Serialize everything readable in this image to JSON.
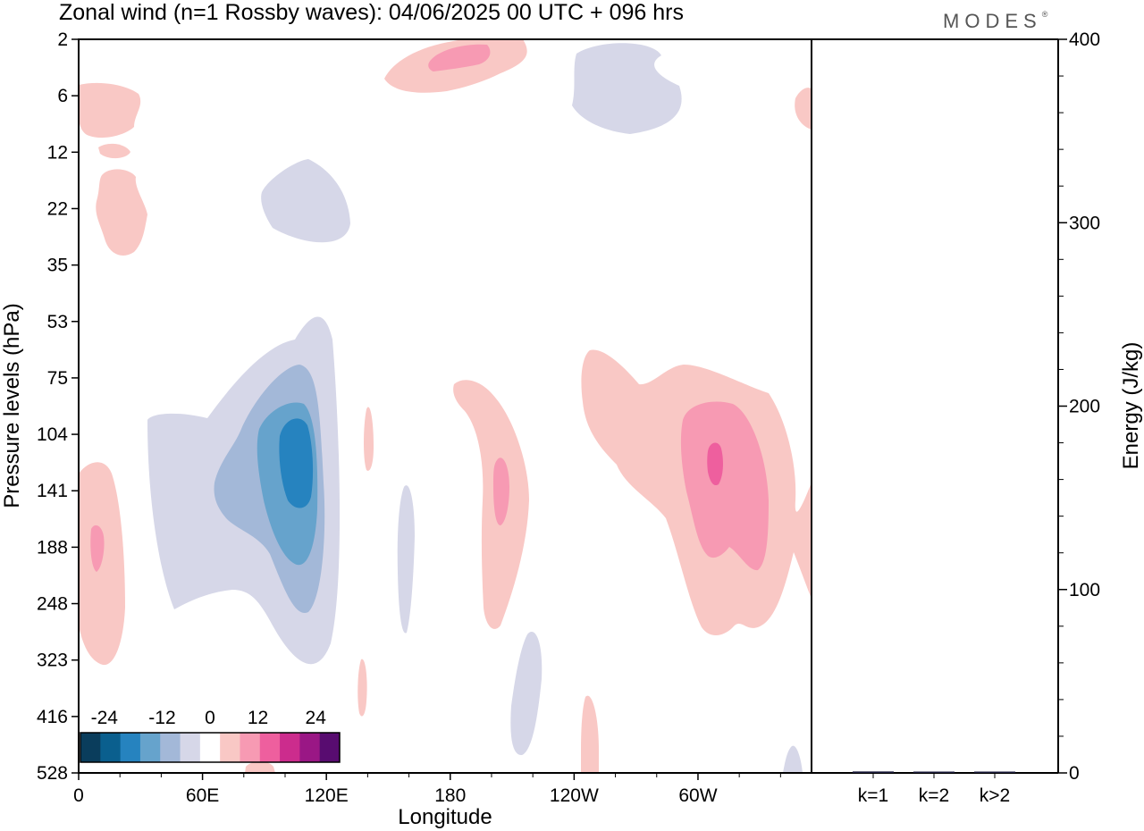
{
  "title": "Zonal wind (n=1 Rossby waves):  04/06/2025  00 UTC  + 096 hrs",
  "logo": "MODES",
  "logo_mark": "®",
  "colors": {
    "neg": [
      "#0a3d5c",
      "#0a5f8e",
      "#2683bf",
      "#66a3cc",
      "#a3b8d8",
      "#d6d7e8"
    ],
    "pos": [
      "#f9c8c5",
      "#f79ab3",
      "#ee5f9e",
      "#cc2c8d",
      "#9a1785",
      "#580c70"
    ],
    "axis": "#000000"
  },
  "chart_data": [
    {
      "type": "heatmap",
      "title": "Zonal wind (n=1 Rossby waves):  04/06/2025  00 UTC  + 096 hrs",
      "xlabel": "Longitude",
      "ylabel": "Pressure levels (hPa)",
      "x_ticks": [
        "0",
        "60E",
        "120E",
        "180",
        "120W",
        "60W"
      ],
      "y_ticks": [
        "2",
        "6",
        "12",
        "22",
        "35",
        "53",
        "75",
        "104",
        "141",
        "188",
        "248",
        "323",
        "416",
        "528"
      ],
      "colorbar": {
        "tick_labels": [
          "-24",
          "-12",
          "0",
          "12",
          "24"
        ],
        "levels": [
          -30,
          -25,
          -20,
          -15,
          -10,
          -5,
          0,
          5,
          10,
          15,
          20,
          25,
          30
        ]
      },
      "features": [
        {
          "sign": "negative",
          "center_lon": 105,
          "center_p": 141,
          "peak": -18
        },
        {
          "sign": "positive",
          "center_lon": 298,
          "center_p": 120,
          "peak": 15
        },
        {
          "sign": "positive",
          "center_lon": 198,
          "center_p": 141,
          "peak": 10
        },
        {
          "sign": "positive",
          "center_lon": 8,
          "center_p": 188,
          "peak": 10
        },
        {
          "sign": "positive",
          "center_lon": 190,
          "center_p": 3,
          "peak": 12
        },
        {
          "sign": "negative",
          "center_lon": 260,
          "center_p": 5,
          "peak": -4
        }
      ]
    },
    {
      "type": "bar",
      "categories": [
        "k=1",
        "k=2",
        "k>2"
      ],
      "values": [
        0.8,
        0.3,
        0.4
      ],
      "ylabel": "Energy (J/kg)",
      "ylim": [
        0,
        400
      ],
      "y_ticks": [
        "0",
        "100",
        "200",
        "300",
        "400"
      ]
    }
  ]
}
